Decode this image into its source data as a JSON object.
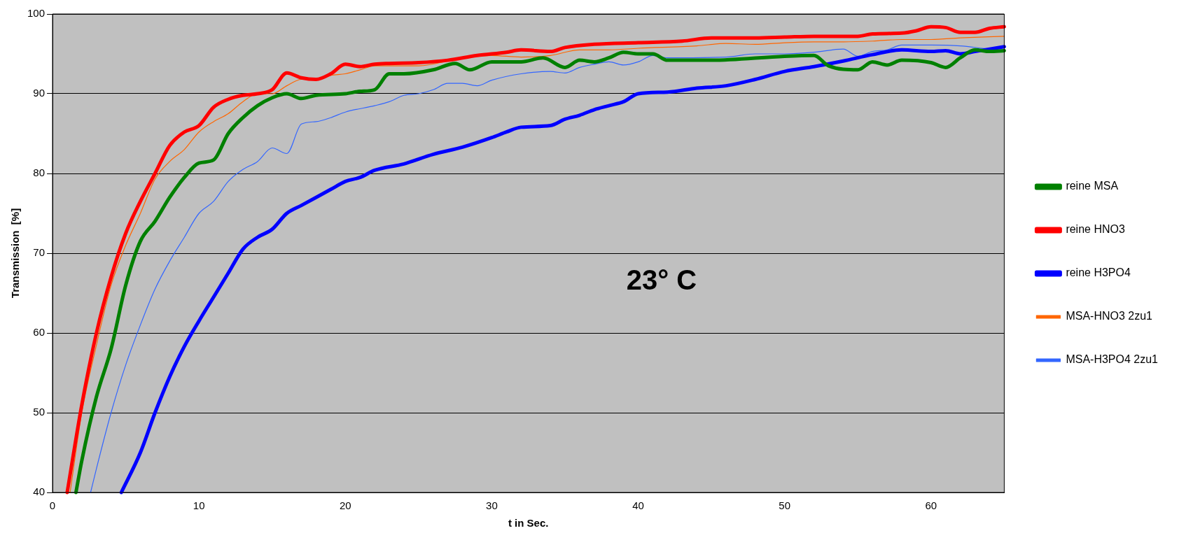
{
  "chart_data": {
    "type": "line",
    "xlabel": "t in Sec.",
    "ylabel": "Transmission  [%]",
    "xlim": [
      0,
      65
    ],
    "xticks": [
      0,
      10,
      20,
      30,
      40,
      50,
      60
    ],
    "ylim": [
      40,
      100
    ],
    "yticks": [
      40,
      50,
      60,
      70,
      80,
      90,
      100
    ],
    "grid": "y",
    "legend": "right",
    "marker": "none",
    "line_style": "solid",
    "annotations": [
      "23° C"
    ],
    "series": [
      {
        "name": "reine MSA",
        "color": "#008000",
        "x": [
          1.6,
          2,
          3,
          4,
          5,
          6,
          7,
          8,
          9,
          10,
          11,
          12,
          13,
          14,
          15,
          16,
          17,
          18,
          20,
          21,
          22,
          23,
          24,
          26,
          27.5,
          28.5,
          30,
          32,
          33.5,
          35,
          36,
          37,
          38,
          39,
          40,
          41,
          42,
          45,
          50,
          52,
          53,
          55,
          56,
          57,
          58,
          60,
          61,
          62,
          63,
          64,
          65
        ],
        "values": [
          40,
          44,
          52,
          58,
          66,
          71.5,
          74,
          77,
          79.5,
          81.3,
          81.7,
          85,
          87,
          88.5,
          89.5,
          90,
          89.4,
          89.8,
          90,
          90.3,
          90.5,
          92.5,
          92.5,
          93,
          93.8,
          93,
          94,
          94,
          94.5,
          93.3,
          94.2,
          94,
          94.5,
          95.2,
          95,
          95,
          94.2,
          94.2,
          94.7,
          94.8,
          93.5,
          93,
          94,
          93.6,
          94.2,
          93.9,
          93.3,
          94.5,
          95.5,
          95.3,
          95.4
        ]
      },
      {
        "name": "reine HNO3",
        "color": "#ff0000",
        "x": [
          1,
          2,
          3,
          4,
          5,
          6,
          7,
          8,
          9,
          10,
          11,
          12,
          13,
          14,
          15,
          16,
          17,
          18,
          19,
          20,
          21,
          22,
          23,
          25,
          27,
          29,
          31,
          32,
          34,
          35,
          37,
          40,
          43,
          45,
          48,
          50,
          52,
          55,
          56,
          58,
          59,
          60,
          61,
          62,
          63,
          64,
          65
        ],
        "values": [
          40,
          51,
          60,
          67,
          72.5,
          76.5,
          80,
          83.5,
          85.2,
          86,
          88.3,
          89.3,
          89.8,
          90,
          90.5,
          92.6,
          92,
          91.8,
          92.5,
          93.7,
          93.4,
          93.7,
          93.8,
          93.9,
          94.2,
          94.8,
          95.2,
          95.5,
          95.3,
          95.8,
          96.2,
          96.4,
          96.6,
          97,
          97,
          97.1,
          97.2,
          97.2,
          97.5,
          97.6,
          97.9,
          98.4,
          98.3,
          97.7,
          97.7,
          98.2,
          98.4
        ]
      },
      {
        "name": "reine H3PO4",
        "color": "#0000ff",
        "x": [
          4.7,
          6,
          7,
          8,
          9,
          10,
          11,
          12,
          13,
          14,
          15,
          16,
          17,
          18,
          19,
          20,
          21,
          22,
          24,
          26,
          28,
          30,
          31,
          32,
          34,
          35,
          36,
          37,
          38,
          39,
          40,
          42,
          44,
          46,
          48,
          50,
          52,
          54,
          56,
          58,
          60,
          61,
          62,
          63,
          64,
          65
        ],
        "values": [
          40,
          45,
          50,
          54.5,
          58.3,
          61.5,
          64.5,
          67.5,
          70.5,
          72,
          73,
          75,
          76,
          77,
          78,
          79,
          79.5,
          80.4,
          81.2,
          82.4,
          83.3,
          84.5,
          85.2,
          85.8,
          86,
          86.8,
          87.3,
          88,
          88.5,
          89,
          90,
          90.2,
          90.7,
          91,
          91.8,
          92.8,
          93.4,
          94.1,
          94.9,
          95.5,
          95.3,
          95.4,
          95,
          95.3,
          95.6,
          95.9
        ]
      },
      {
        "name": "MSA-HNO3 2zu1",
        "color": "#ff6600",
        "x": [
          1.2,
          2,
          3,
          4,
          5,
          6,
          7,
          8,
          9,
          10,
          11,
          12,
          13,
          14,
          15,
          16,
          17,
          18,
          19,
          20,
          21,
          22,
          25,
          28,
          30,
          32,
          34,
          36,
          38,
          40,
          44,
          46,
          48,
          50,
          52,
          54,
          56,
          58,
          60,
          62,
          65
        ],
        "values": [
          40,
          50,
          58.5,
          66,
          71,
          75,
          79.3,
          81.5,
          83,
          85.2,
          86.5,
          87.5,
          89,
          90,
          90,
          91,
          91.8,
          91.8,
          92.3,
          92.5,
          93,
          93.5,
          93.5,
          94.5,
          94.8,
          94.6,
          94.8,
          95.5,
          95.5,
          95.7,
          96,
          96.3,
          96.2,
          96.4,
          96.5,
          96.5,
          96.6,
          96.8,
          96.8,
          97,
          97.2
        ]
      },
      {
        "name": "MSA-H3PO4 2zu1",
        "color": "#3366ff",
        "x": [
          2.6,
          3,
          4,
          5,
          6,
          7,
          8,
          9,
          10,
          11,
          12,
          13,
          14,
          15,
          16,
          17,
          18,
          19,
          20,
          22,
          23,
          24,
          25,
          26,
          27,
          28,
          29,
          30,
          32,
          34,
          35,
          36,
          37,
          38,
          39,
          40,
          41,
          42,
          44,
          46,
          48,
          50,
          52,
          54,
          55,
          56,
          57,
          58,
          60,
          62,
          64,
          65
        ],
        "values": [
          40,
          43,
          50,
          56,
          61,
          65.5,
          69,
          72,
          75,
          76.5,
          79,
          80.5,
          81.5,
          83.2,
          82.5,
          86.2,
          86.5,
          87,
          87.7,
          88.5,
          89,
          89.8,
          90,
          90.5,
          91.3,
          91.3,
          91,
          91.7,
          92.5,
          92.8,
          92.6,
          93.3,
          93.7,
          94,
          93.6,
          94,
          94.8,
          94.5,
          null,
          94.6,
          95,
          95,
          95.2,
          95.6,
          94.7,
          95.3,
          95.5,
          96.1,
          96.1,
          96,
          95.6,
          95.5
        ]
      }
    ]
  }
}
